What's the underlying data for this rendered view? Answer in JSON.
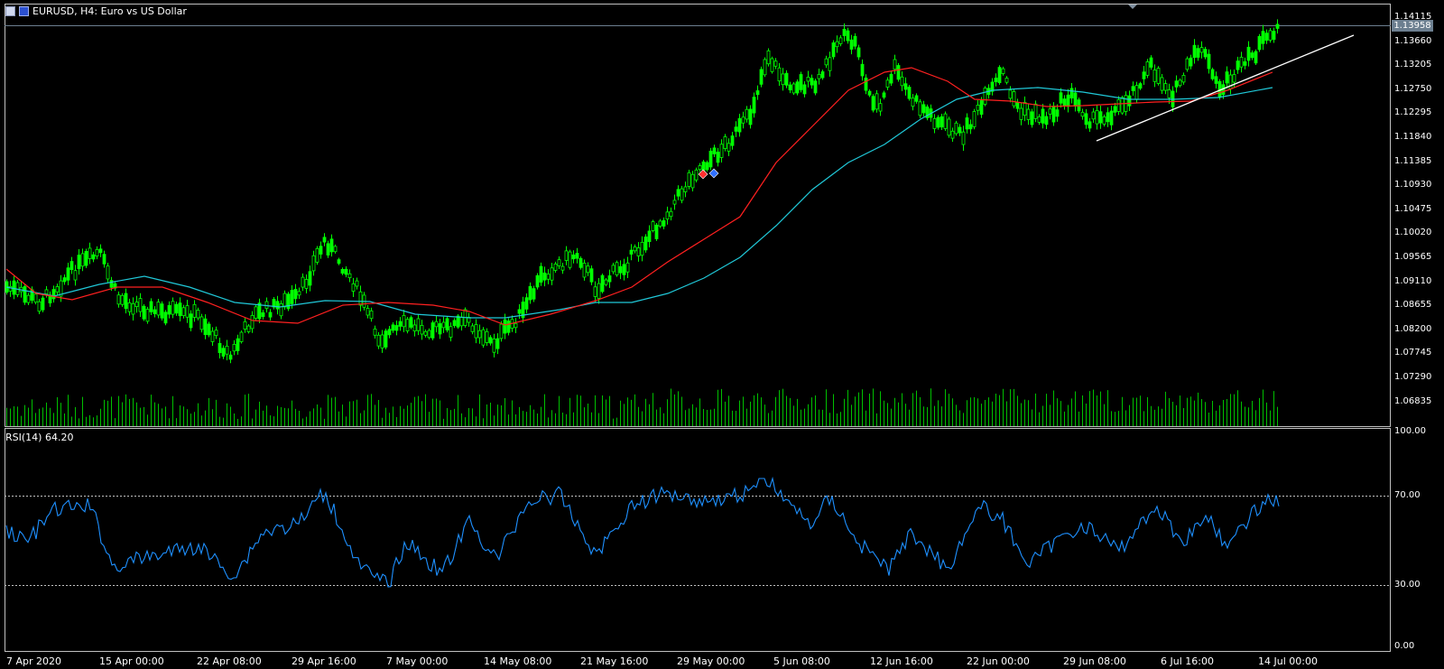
{
  "header": {
    "title": "EURUSD, H4:  Euro vs US Dollar"
  },
  "current_price": "1.13958",
  "price_axis": [
    "1.14115",
    "1.13660",
    "1.13205",
    "1.12750",
    "1.12295",
    "1.11840",
    "1.11385",
    "1.10930",
    "1.10475",
    "1.10020",
    "1.09565",
    "1.09110",
    "1.08655",
    "1.08200",
    "1.07745",
    "1.07290",
    "1.06835"
  ],
  "rsi": {
    "label": "RSI(14) 64.20",
    "axis": [
      "100.00",
      "70.00",
      "30.00",
      "0.00"
    ]
  },
  "time_axis": [
    "7 Apr 2020",
    "15 Apr 00:00",
    "22 Apr 08:00",
    "29 Apr 16:00",
    "7 May 00:00",
    "14 May 08:00",
    "21 May 16:00",
    "29 May 00:00",
    "5 Jun 08:00",
    "12 Jun 16:00",
    "22 Jun 00:00",
    "29 Jun 08:00",
    "6 Jul 16:00",
    "14 Jul 00:00"
  ],
  "colors": {
    "background": "#000000",
    "candle": "#00ff00",
    "volume": "#00ff00",
    "ma_red": "#ff2020",
    "ma_cyan": "#20c8d8",
    "rsi_line": "#1e90ff",
    "trendline": "#ffffff",
    "grid_dashed": "#c0c0c0"
  }
}
